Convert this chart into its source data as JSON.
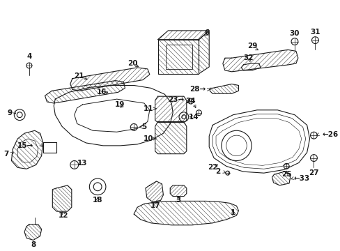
{
  "background_color": "#ffffff",
  "line_color": "#1a1a1a",
  "figsize": [
    4.89,
    3.6
  ],
  "dpi": 100,
  "label_fontsize": 7.5,
  "lw_main": 0.8,
  "lw_hatch": 0.4
}
